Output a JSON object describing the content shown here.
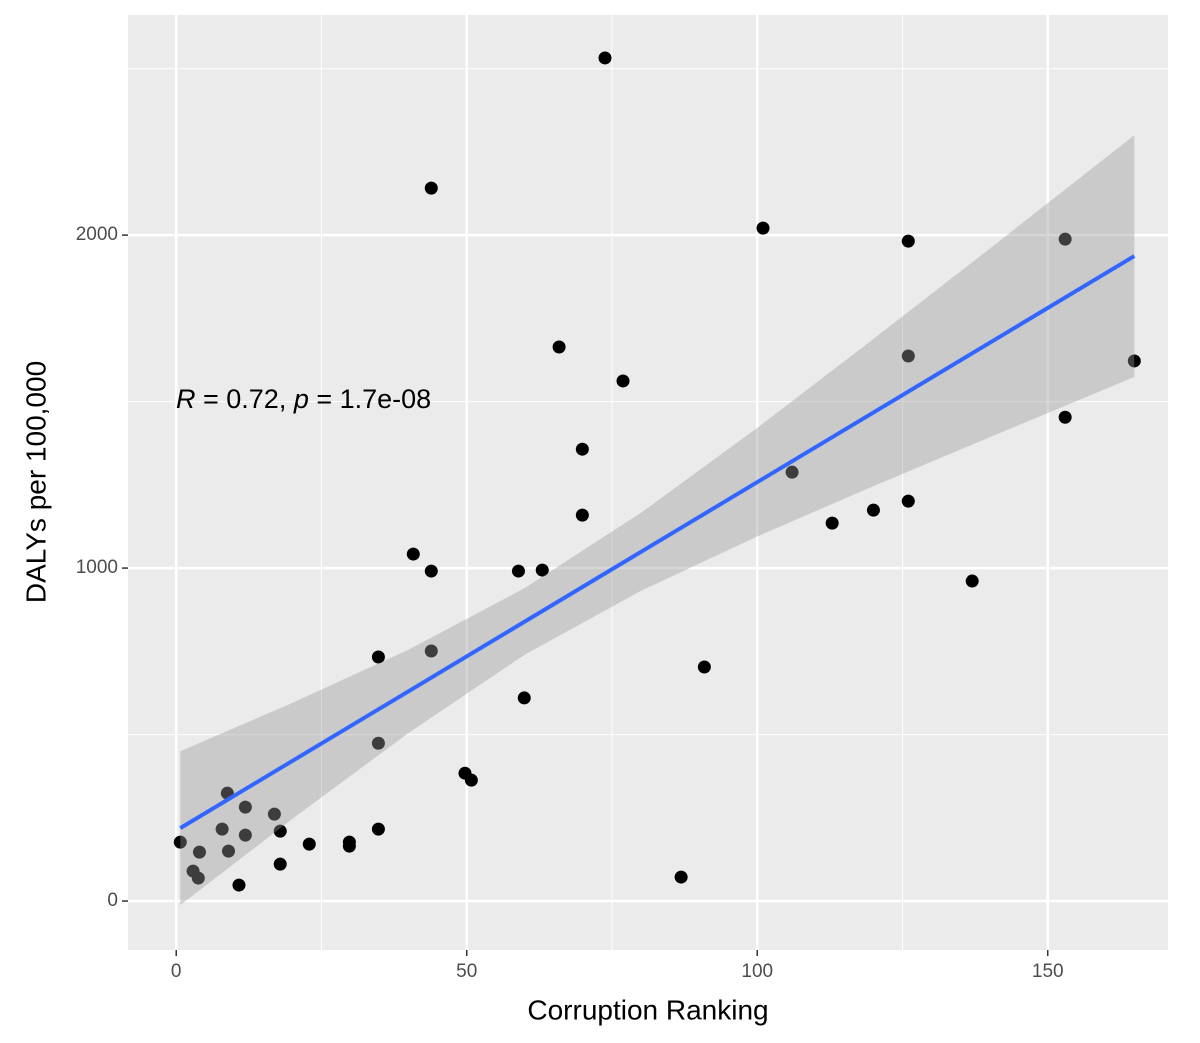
{
  "chart_data": {
    "type": "scatter",
    "x_label": "Corruption Ranking",
    "y_label": "DALYs per 100,000",
    "annotation": [
      {
        "text": "R",
        "italic": true
      },
      {
        "text": " = 0.72, "
      },
      {
        "text": "p",
        "italic": true
      },
      {
        "text": " = 1.7e-08"
      }
    ],
    "xlim": [
      -8.3,
      170.7
    ],
    "ylim": [
      -147,
      2661
    ],
    "xticks": [
      0,
      50,
      100,
      150
    ],
    "yticks": [
      0,
      1000,
      2000
    ],
    "x_minor_grid": [
      25,
      75,
      125
    ],
    "y_minor_grid": [
      500,
      1500,
      2500
    ],
    "grid": true,
    "series": [
      {
        "color": "#000000",
        "x": [
          0.7,
          2.9,
          3.8,
          4,
          8.8,
          7.9,
          9,
          10.8,
          11.9,
          11.9,
          16.9,
          17.9,
          17.9,
          22.9,
          29.8,
          29.8,
          34.8,
          34.8,
          34.8,
          40.8,
          43.9,
          43.9,
          43.9,
          49.7,
          50.8,
          58.9,
          59.9,
          63,
          65.9,
          69.9,
          69.9,
          73.8,
          76.9,
          86.9,
          90.9,
          101,
          106,
          112.9,
          120,
          126,
          126,
          126,
          137,
          153,
          153,
          164.9
        ],
        "values": [
          177,
          90,
          69,
          147,
          324,
          216,
          150,
          48,
          282,
          198,
          261,
          210,
          111,
          171,
          177,
          165,
          733,
          474,
          216,
          1042,
          2141,
          991,
          751,
          384,
          363,
          991,
          610,
          994,
          1664,
          1357,
          1159,
          2532,
          1562,
          72,
          703,
          2021,
          1288,
          1135,
          1174,
          1982,
          1637,
          1201,
          961,
          1988,
          1453,
          1622
        ]
      }
    ],
    "fit": {
      "color": "#3366ff",
      "x": [
        0.7,
        164.9
      ],
      "values": [
        219,
        1937
      ]
    },
    "band": {
      "color": "#999999",
      "x": [
        0.7,
        20,
        40,
        60,
        80,
        100,
        120,
        140,
        164.9
      ],
      "lower": [
        -12,
        247,
        505,
        740,
        932,
        1095,
        1246,
        1393,
        1574
      ],
      "upper": [
        450,
        595,
        755,
        940,
        1166,
        1421,
        1688,
        1959,
        2300
      ]
    }
  }
}
